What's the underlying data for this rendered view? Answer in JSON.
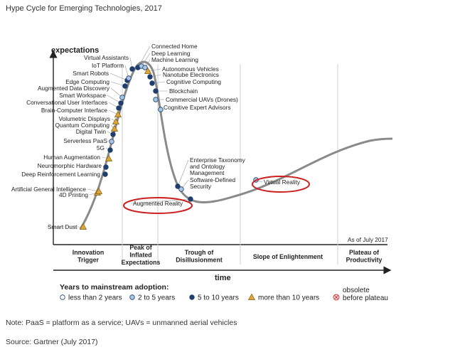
{
  "figure_title": "Hype Cycle for Emerging Technologies, 2017",
  "note": "Note: PaaS = platform as a service; UAVs = unmanned aerial vehicles",
  "source": "Source: Gartner (July 2017)",
  "colors": {
    "curve": "#8a8a8a",
    "less_than_2": "#ffffff",
    "two_to_5": "#a8c6e2",
    "five_to_10": "#1f3e6e",
    "more_than_10": "#e0a63a",
    "obsolete": "#cc3333",
    "highlight": "#cc1f1f"
  },
  "chart_data": {
    "type": "scatter",
    "title": "",
    "ylabel": "expectations",
    "xlabel": "time",
    "as_of": "As of July 2017",
    "phases": [
      "Innovation Trigger",
      "Peak of Inflated Expectations",
      "Trough of Disillusionment",
      "Slope of Enlightenment",
      "Plateau of Productivity"
    ],
    "legend": {
      "title": "Years to mainstream adoption:",
      "items": [
        {
          "key": "lt2",
          "label": "less than 2 years"
        },
        {
          "key": "2to5",
          "label": "2 to 5 years"
        },
        {
          "key": "5to10",
          "label": "5 to 10 years"
        },
        {
          "key": "gt10",
          "label": "more than 10 years"
        },
        {
          "key": "obsolete",
          "label_line1": "obsolete",
          "label_line2": "before plateau"
        }
      ]
    },
    "series": [
      {
        "label": "Smart Dust",
        "category": "gt10",
        "phase": "Innovation Trigger"
      },
      {
        "label": "4D Printing",
        "category": "gt10",
        "phase": "Innovation Trigger"
      },
      {
        "label": "Artificial General Intelligence",
        "category": "gt10",
        "phase": "Innovation Trigger"
      },
      {
        "label": "Deep Reinforcement Learning",
        "category": "5to10",
        "phase": "Innovation Trigger"
      },
      {
        "label": "Neuromorphic Hardware",
        "category": "5to10",
        "phase": "Innovation Trigger"
      },
      {
        "label": "Human Augmentation",
        "category": "gt10",
        "phase": "Innovation Trigger"
      },
      {
        "label": "5G",
        "category": "5to10",
        "phase": "Innovation Trigger"
      },
      {
        "label": "Serverless PaaS",
        "category": "2to5",
        "phase": "Innovation Trigger"
      },
      {
        "label": "Digital Twin",
        "category": "5to10",
        "phase": "Innovation Trigger"
      },
      {
        "label": "Quantum Computing",
        "category": "gt10",
        "phase": "Innovation Trigger"
      },
      {
        "label": "Volumetric Displays",
        "category": "gt10",
        "phase": "Innovation Trigger"
      },
      {
        "label": "Brain-Computer Interface",
        "category": "gt10",
        "phase": "Innovation Trigger"
      },
      {
        "label": "Conversational User Interfaces",
        "category": "5to10",
        "phase": "Innovation Trigger"
      },
      {
        "label": "Smart Workspace",
        "category": "5to10",
        "phase": "Innovation Trigger"
      },
      {
        "label": "Augmented Data Discovery",
        "category": "2to5",
        "phase": "Innovation Trigger"
      },
      {
        "label": "Edge Computing",
        "category": "5to10",
        "phase": "Innovation Trigger"
      },
      {
        "label": "Smart Robots",
        "category": "5to10",
        "phase": "Innovation Trigger"
      },
      {
        "label": "IoT Platform",
        "category": "2to5",
        "phase": "Peak of Inflated Expectations"
      },
      {
        "label": "Virtual Assistants",
        "category": "5to10",
        "phase": "Peak of Inflated Expectations"
      },
      {
        "label": "Connected Home",
        "category": "5to10",
        "phase": "Peak of Inflated Expectations"
      },
      {
        "label": "Deep Learning",
        "category": "2to5",
        "phase": "Peak of Inflated Expectations"
      },
      {
        "label": "Machine Learning",
        "category": "2to5",
        "phase": "Peak of Inflated Expectations"
      },
      {
        "label": "Autonomous Vehicles",
        "category": "gt10",
        "phase": "Peak of Inflated Expectations"
      },
      {
        "label": "Nanotube Electronics",
        "category": "5to10",
        "phase": "Peak of Inflated Expectations"
      },
      {
        "label": "Cognitive Computing",
        "category": "5to10",
        "phase": "Peak of Inflated Expectations"
      },
      {
        "label": "Blockchain",
        "category": "5to10",
        "phase": "Peak of Inflated Expectations"
      },
      {
        "label": "Commercial UAVs (Drones)",
        "category": "2to5",
        "phase": "Peak of Inflated Expectations"
      },
      {
        "label": "Cognitive Expert Advisors",
        "category": "2to5",
        "phase": "Peak of Inflated Expectations"
      },
      {
        "label": "Enterprise Taxonomy and Ontology Management",
        "category": "5to10",
        "phase": "Trough of Disillusionment"
      },
      {
        "label": "Software-Defined Security",
        "category": "2to5",
        "phase": "Trough of Disillusionment"
      },
      {
        "label": "Augmented Reality",
        "category": "5to10",
        "phase": "Trough of Disillusionment"
      },
      {
        "label": "Virtual Reality",
        "category": "2to5",
        "phase": "Slope of Enlightenment"
      }
    ]
  }
}
